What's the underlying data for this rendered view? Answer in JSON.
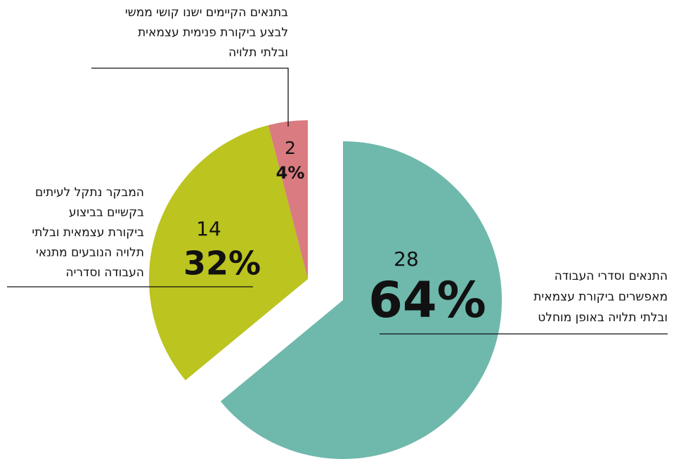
{
  "chart_data": {
    "type": "pie",
    "categories": [
      [
        "התנאים וסדרי העבודה",
        "מאפשרים ביקורת עצמאית",
        "ובלתי תלויה באופן מוחלט"
      ],
      [
        "המבקר נתקל לעיתים",
        "בקשיים בביצוע",
        "ביקורת עצמאית ובלתי",
        "תלויה הנובעים מתנאי",
        "העבודה וסדריה"
      ],
      [
        "בתנאים הקיימים ישנו קושי ממשי",
        "לבצע ביקורת פנימית עצמאית",
        "ובלתי תלויה"
      ]
    ],
    "values": [
      64,
      32,
      4
    ],
    "value_labels": [
      "64%",
      "32%",
      "4%"
    ],
    "counts": [
      28,
      14,
      2
    ],
    "colors": [
      "#6fb8ac",
      "#bcc41f",
      "#d97b80"
    ]
  }
}
